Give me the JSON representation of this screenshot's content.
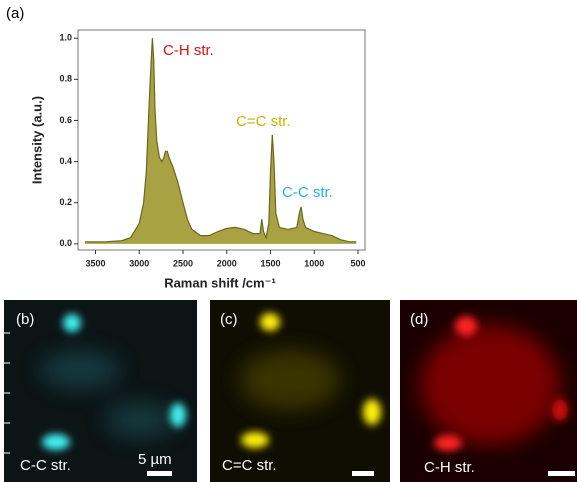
{
  "chart_data": {
    "type": "area",
    "panel_label": "(a)",
    "x_label": "Raman shift /cm⁻¹",
    "y_label": "Intensity (a.u.)",
    "annotations": [
      "C-H str.",
      "C=C str.",
      "C-C str."
    ],
    "color": "#a9a243",
    "line_color": "#6b6720",
    "xlim": [
      3700,
      420
    ],
    "ylim": [
      -0.03,
      1.04
    ],
    "xticks": [
      3500,
      3000,
      2500,
      2000,
      1500,
      1000,
      500
    ],
    "yticks": [
      {
        "value": 0,
        "label": "0.0"
      },
      {
        "value": 0.2,
        "label": "0.2"
      },
      {
        "value": 0.4,
        "label": "0.4"
      },
      {
        "value": 0.6,
        "label": "0.6"
      },
      {
        "value": 0.8,
        "label": "0.8"
      },
      {
        "value": 1,
        "label": "1.0"
      }
    ],
    "x": [
      3620,
      3400,
      3200,
      3100,
      3000,
      2950,
      2920,
      2900,
      2880,
      2860,
      2850,
      2835,
      2820,
      2800,
      2770,
      2740,
      2720,
      2700,
      2680,
      2660,
      2620,
      2560,
      2500,
      2450,
      2400,
      2300,
      2200,
      2100,
      2000,
      1900,
      1800,
      1700,
      1620,
      1600,
      1580,
      1550,
      1520,
      1500,
      1480,
      1460,
      1440,
      1400,
      1300,
      1200,
      1170,
      1150,
      1130,
      1100,
      1000,
      900,
      800,
      700,
      600,
      520
    ],
    "values": [
      0.01,
      0.01,
      0.015,
      0.03,
      0.1,
      0.2,
      0.35,
      0.55,
      0.75,
      0.92,
      1.0,
      0.9,
      0.65,
      0.5,
      0.42,
      0.4,
      0.42,
      0.45,
      0.45,
      0.42,
      0.38,
      0.3,
      0.2,
      0.12,
      0.07,
      0.04,
      0.04,
      0.06,
      0.075,
      0.08,
      0.07,
      0.05,
      0.05,
      0.12,
      0.06,
      0.03,
      0.1,
      0.35,
      0.53,
      0.4,
      0.15,
      0.08,
      0.07,
      0.08,
      0.15,
      0.18,
      0.12,
      0.08,
      0.06,
      0.05,
      0.04,
      0.02,
      0.01,
      0.01
    ]
  },
  "panels": [
    {
      "label": "(b)",
      "caption": "C-C str."
    },
    {
      "label": "(c)",
      "caption": "C=C str."
    },
    {
      "label": "(d)",
      "caption": "C-H str."
    }
  ],
  "scale_bar": "5 µm"
}
